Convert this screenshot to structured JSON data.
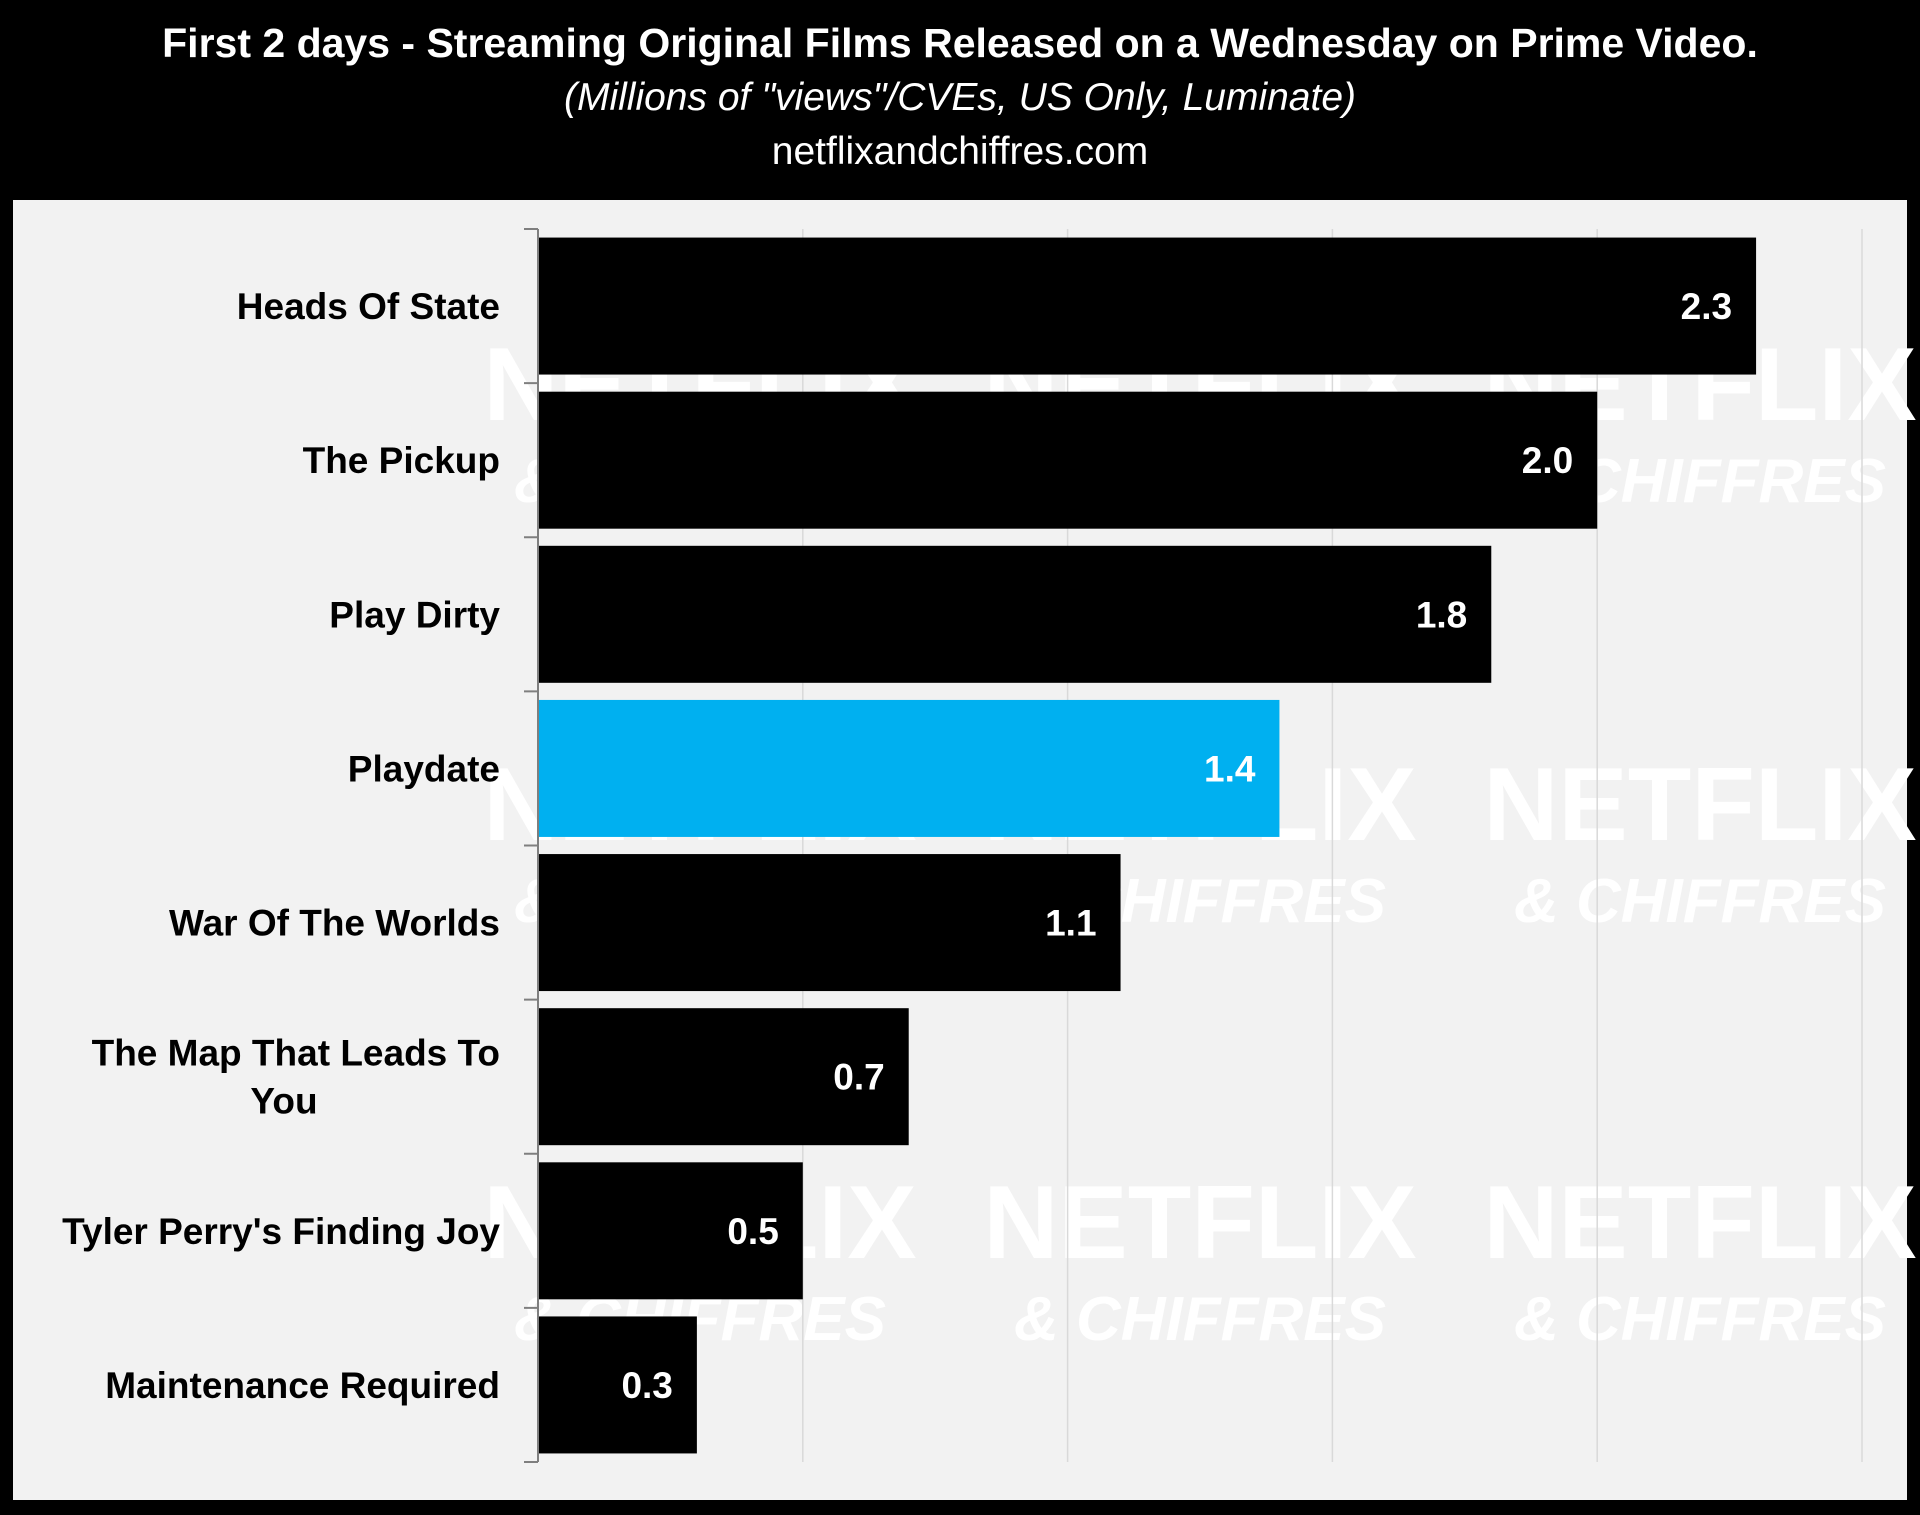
{
  "header": {
    "title": "First 2 days - Streaming Original Films Released on a Wednesday on Prime Video.",
    "subtitle": "(Millions of \"views\"/CVEs, US Only, Luminate)",
    "source": "netflixandchiffres.com"
  },
  "watermark": {
    "line1": "NETFLIX",
    "line2": "& CHIFFRES"
  },
  "colors": {
    "default_bar": "#000000",
    "highlight_bar": "#00b0f0",
    "plot_background": "#f2f2f2",
    "header_background": "#000000"
  },
  "chart_data": {
    "type": "bar",
    "orientation": "horizontal",
    "categories": [
      "Heads Of State",
      "The Pickup",
      "Play Dirty",
      "Playdate",
      "War Of The Worlds",
      "The Map That Leads To You",
      "Tyler Perry's Finding Joy",
      "Maintenance Required"
    ],
    "category_label_lines": [
      [
        "Heads Of State"
      ],
      [
        "The Pickup"
      ],
      [
        "Play Dirty"
      ],
      [
        "Playdate"
      ],
      [
        "War Of The Worlds"
      ],
      [
        "The Map That Leads To",
        "You"
      ],
      [
        "Tyler Perry's Finding Joy"
      ],
      [
        "Maintenance Required"
      ]
    ],
    "values": [
      2.3,
      2.0,
      1.8,
      1.4,
      1.1,
      0.7,
      0.5,
      0.3
    ],
    "value_labels": [
      "2.3",
      "2.0",
      "1.8",
      "1.4",
      "1.1",
      "0.7",
      "0.5",
      "0.3"
    ],
    "highlight_index": 3,
    "xlim": [
      0,
      2.5
    ],
    "x_gridlines": [
      0.5,
      1.0,
      1.5,
      2.0,
      2.5
    ],
    "grid": true,
    "legend": false
  }
}
